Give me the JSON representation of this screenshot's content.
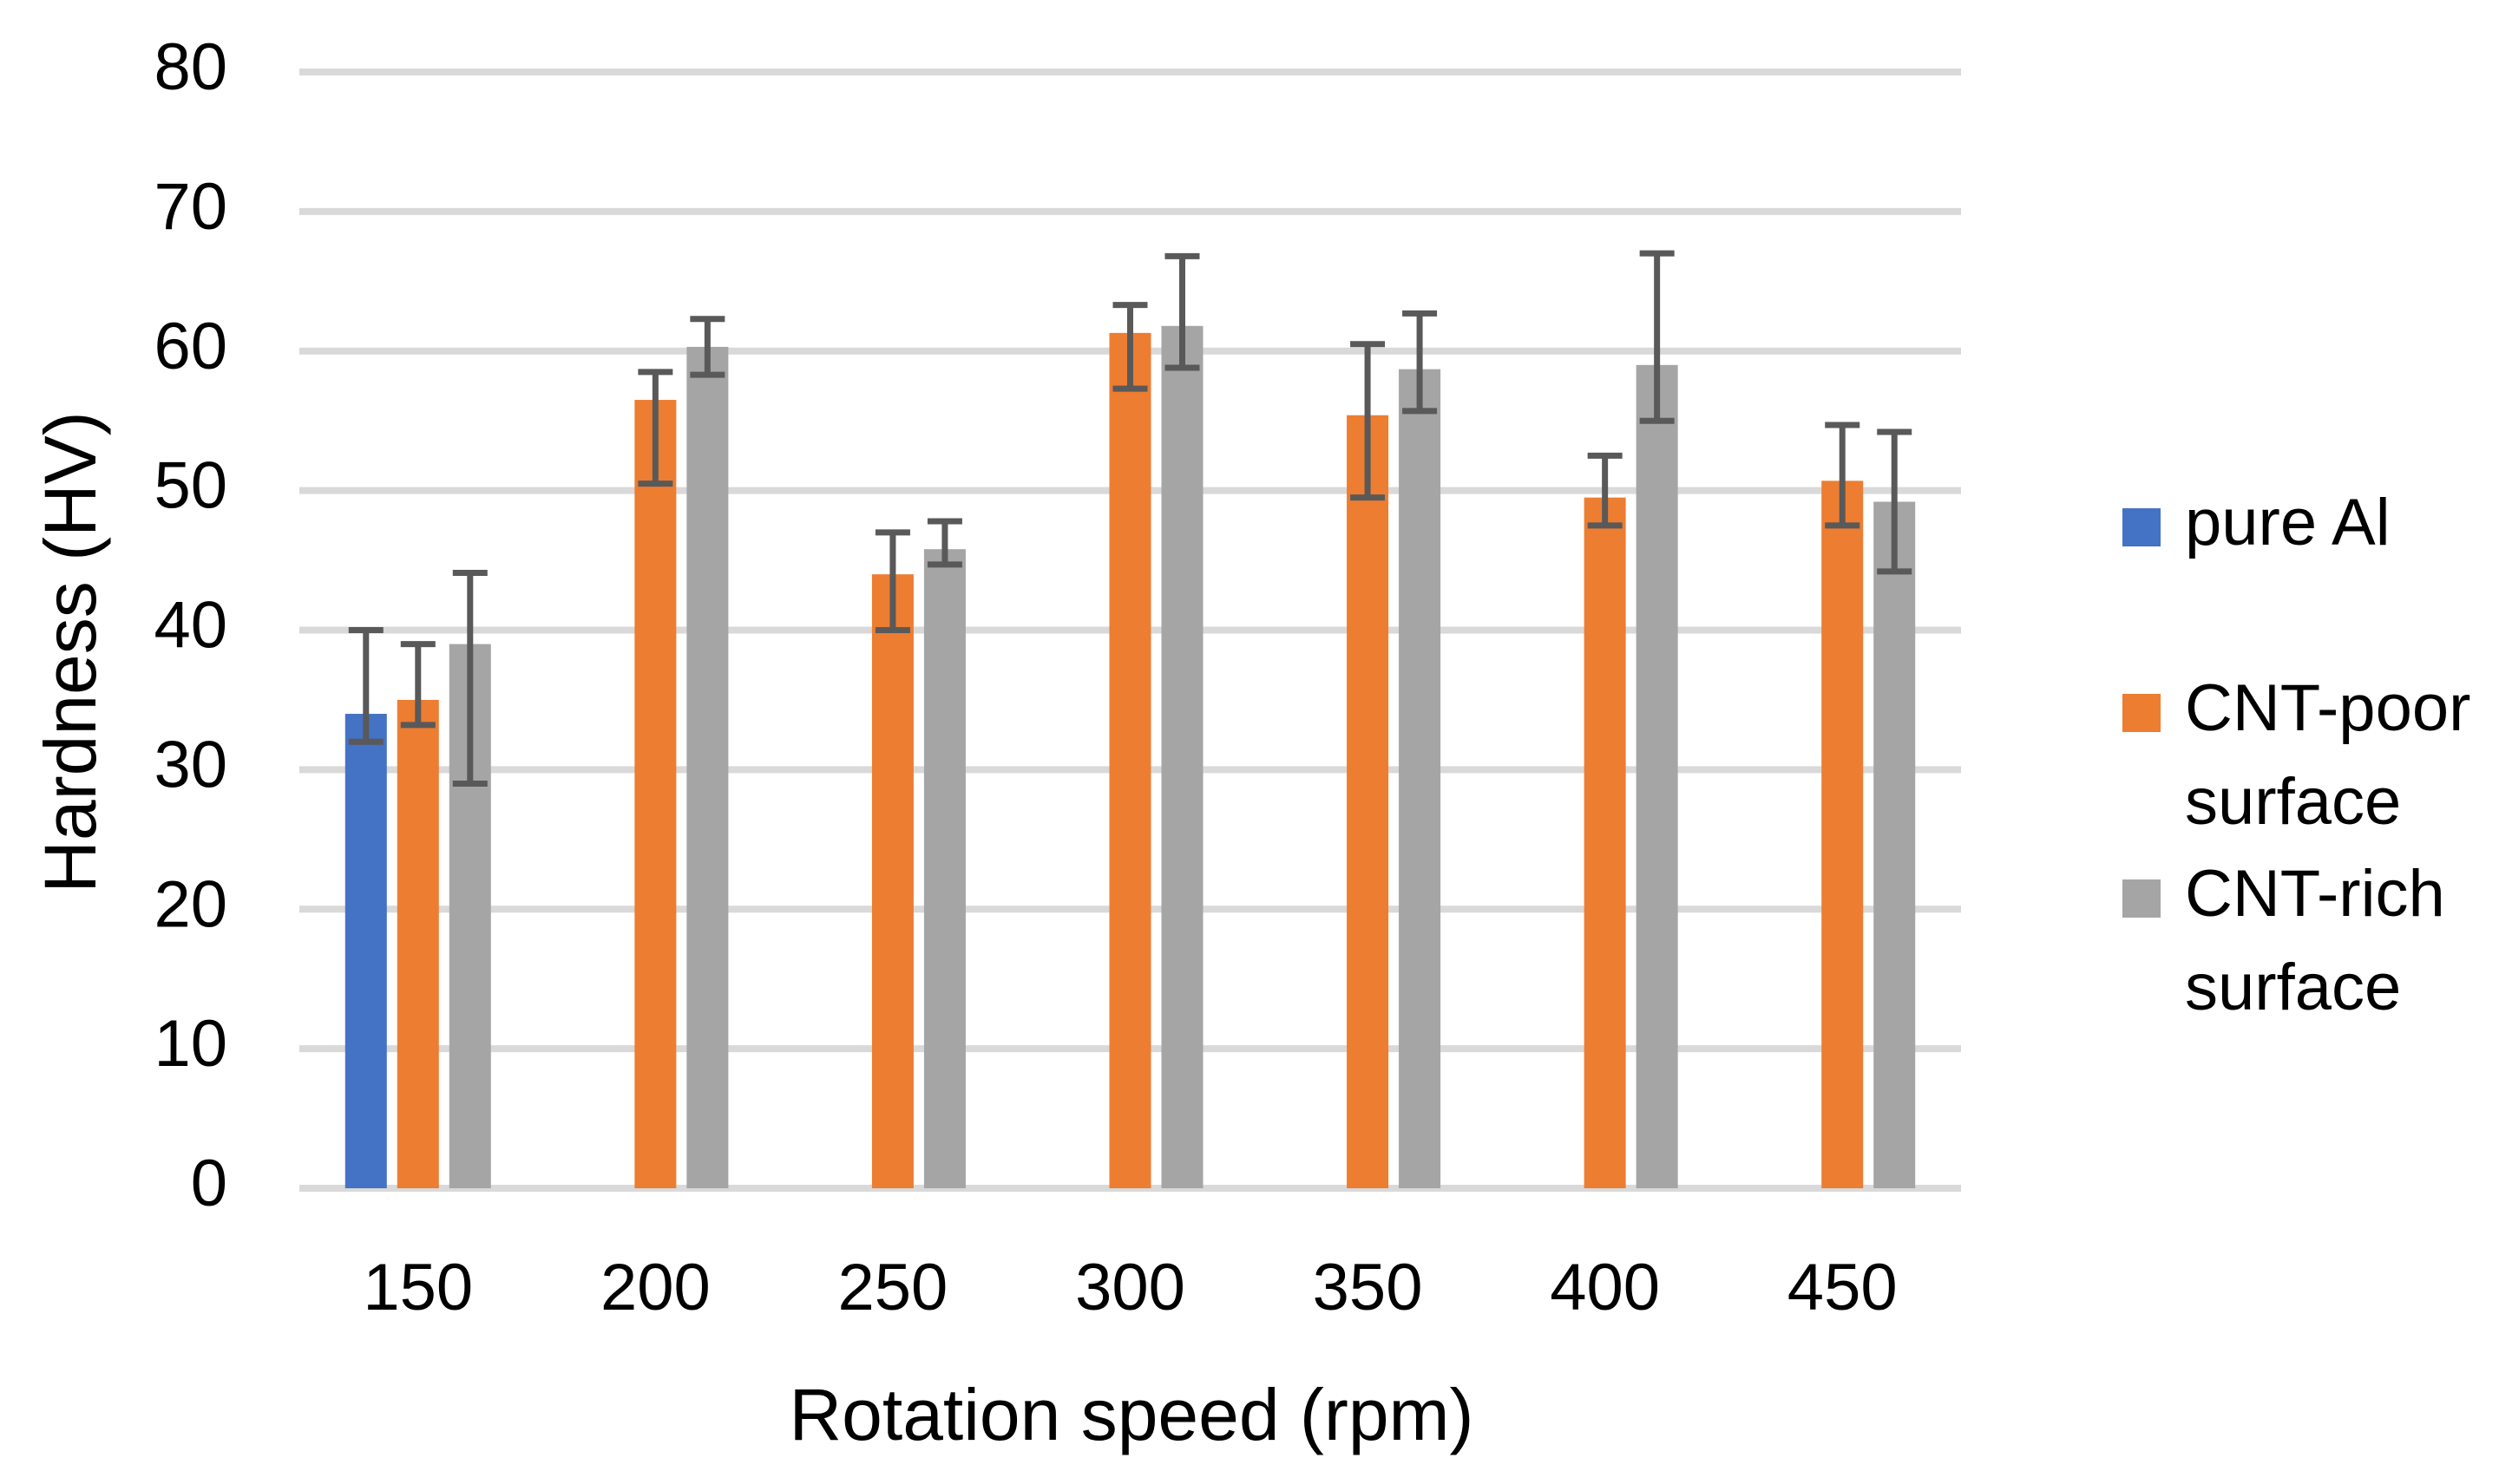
{
  "chart_data": {
    "type": "bar",
    "title": "",
    "xlabel": "Rotation speed (rpm)",
    "ylabel": "Hardness (HV)",
    "ylim": [
      0,
      80
    ],
    "yticks": [
      "0",
      "10",
      "20",
      "30",
      "40",
      "50",
      "60",
      "70",
      "80"
    ],
    "ytick_values": [
      0,
      10,
      20,
      30,
      40,
      50,
      60,
      70,
      80
    ],
    "grid": true,
    "legend_position": "right",
    "categories": [
      "150",
      "200",
      "250",
      "300",
      "350",
      "400",
      "450"
    ],
    "series": [
      {
        "name": "pure Al",
        "legend_lines": [
          "pure Al"
        ],
        "color": "#4472C4",
        "values": [
          34,
          null,
          null,
          null,
          null,
          null,
          null
        ],
        "err_low": [
          32,
          null,
          null,
          null,
          null,
          null,
          null
        ],
        "err_high": [
          40,
          null,
          null,
          null,
          null,
          null,
          null
        ]
      },
      {
        "name": "CNT-poor surface",
        "legend_lines": [
          "CNT-poor",
          "surface"
        ],
        "color": "#ED7D31",
        "values": [
          35,
          56.5,
          44,
          61.3,
          55.4,
          49.5,
          50.7
        ],
        "err_low": [
          33.2,
          50.5,
          40,
          57.3,
          49.5,
          47.5,
          47.5
        ],
        "err_high": [
          39,
          58.5,
          47,
          63.3,
          60.5,
          52.5,
          54.7
        ]
      },
      {
        "name": "CNT-rich surface",
        "legend_lines": [
          "CNT-rich",
          "surface"
        ],
        "color": "#A5A5A5",
        "values": [
          39,
          60.3,
          45.8,
          61.8,
          58.7,
          59,
          49.2
        ],
        "err_low": [
          29,
          58.3,
          44.7,
          58.8,
          55.7,
          55,
          44.2
        ],
        "err_high": [
          44.1,
          62.3,
          47.8,
          66.8,
          62.7,
          67,
          54.2
        ]
      }
    ]
  }
}
